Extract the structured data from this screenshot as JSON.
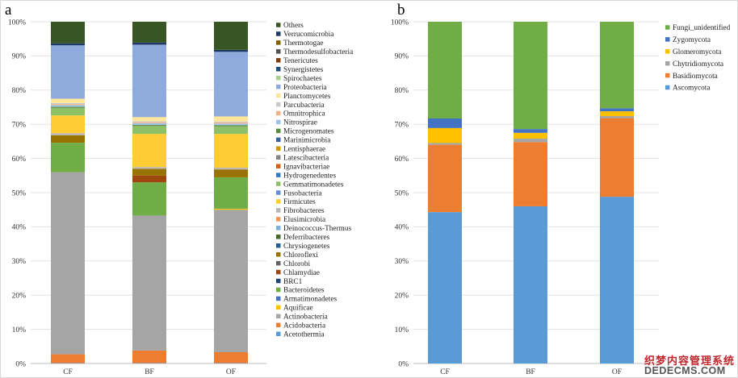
{
  "chart_data": [
    {
      "panel_label": "a",
      "type": "stacked-bar",
      "categories": [
        "CF",
        "BF",
        "OF"
      ],
      "ylim": [
        0,
        100
      ],
      "yticks": [
        "0%",
        "10%",
        "20%",
        "30%",
        "40%",
        "50%",
        "60%",
        "70%",
        "80%",
        "90%",
        "100%"
      ],
      "grid": true,
      "legend_position": "right",
      "series": [
        {
          "name": "Acetothermia",
          "color": "#5b9bd5",
          "values": [
            0.1,
            0.1,
            0.1
          ]
        },
        {
          "name": "Acidobacteria",
          "color": "#ed7d31",
          "values": [
            2.6,
            3.7,
            3.2
          ]
        },
        {
          "name": "Actinobacteria",
          "color": "#a5a5a5",
          "values": [
            53.3,
            39.5,
            41.7
          ]
        },
        {
          "name": "Aquificae",
          "color": "#ffc000",
          "values": [
            0,
            0,
            0.3
          ]
        },
        {
          "name": "Armatimonadetes",
          "color": "#4472c4",
          "values": [
            0,
            0,
            0
          ]
        },
        {
          "name": "Bacteroidetes",
          "color": "#70ad47",
          "values": [
            8.6,
            9.7,
            9.2
          ]
        },
        {
          "name": "BRC1",
          "color": "#264478",
          "values": [
            0,
            0,
            0
          ]
        },
        {
          "name": "Chlamydiae",
          "color": "#9e480e",
          "values": [
            0,
            2.0,
            0
          ]
        },
        {
          "name": "Chlorobi",
          "color": "#636363",
          "values": [
            0,
            0,
            0
          ]
        },
        {
          "name": "Chloroflexi",
          "color": "#997300",
          "values": [
            2.2,
            2.0,
            2.3
          ]
        },
        {
          "name": "Chrysiogenetes",
          "color": "#255e91",
          "values": [
            0,
            0,
            0
          ]
        },
        {
          "name": "Deferribacteres",
          "color": "#43682b",
          "values": [
            0,
            0,
            0
          ]
        },
        {
          "name": "Deinococcus-Thermus",
          "color": "#7cafdd",
          "values": [
            0,
            0,
            0
          ]
        },
        {
          "name": "Elusimicrobia",
          "color": "#f1975a",
          "values": [
            0,
            0,
            0
          ]
        },
        {
          "name": "Fibrobacteres",
          "color": "#b7b7b7",
          "values": [
            0.6,
            0.5,
            0.5
          ]
        },
        {
          "name": "Firmicutes",
          "color": "#ffcd33",
          "values": [
            5.2,
            9.7,
            9.9
          ]
        },
        {
          "name": "Fusobacteria",
          "color": "#698ed0",
          "values": [
            0,
            0,
            0
          ]
        },
        {
          "name": "Gemmatimonadetes",
          "color": "#8cc168",
          "values": [
            2.2,
            2.3,
            2.2
          ]
        },
        {
          "name": "Hydrogenedentes",
          "color": "#327dc2",
          "values": [
            0,
            0,
            0
          ]
        },
        {
          "name": "Ignavibacteriae",
          "color": "#d26012",
          "values": [
            0,
            0,
            0
          ]
        },
        {
          "name": "Latescibacteria",
          "color": "#848484",
          "values": [
            0,
            0,
            0
          ]
        },
        {
          "name": "Lentisphaerae",
          "color": "#cc9a00",
          "values": [
            0,
            0,
            0
          ]
        },
        {
          "name": "Marinimicrobia",
          "color": "#3a5fa0",
          "values": [
            0,
            0,
            0
          ]
        },
        {
          "name": "Microgenomates",
          "color": "#5a8a3c",
          "values": [
            0.3,
            0.3,
            0.3
          ]
        },
        {
          "name": "Nitrospirae",
          "color": "#9dc3e6",
          "values": [
            0.5,
            0.5,
            0.5
          ]
        },
        {
          "name": "Omnitrophica",
          "color": "#f4b183",
          "values": [
            0.3,
            0.3,
            0.3
          ]
        },
        {
          "name": "Parcubacteria",
          "color": "#c9c9c9",
          "values": [
            0.3,
            0.3,
            0.3
          ]
        },
        {
          "name": "Planctomycetes",
          "color": "#ffe699",
          "values": [
            1.3,
            1.2,
            1.5
          ]
        },
        {
          "name": "Proteobacteria",
          "color": "#8faadc",
          "values": [
            15.6,
            21.2,
            18.9
          ]
        },
        {
          "name": "Spirochaetes",
          "color": "#a9d18e",
          "values": [
            0,
            0,
            0
          ]
        },
        {
          "name": "Synergistetes",
          "color": "#1f4e79",
          "values": [
            0,
            0,
            0
          ]
        },
        {
          "name": "Tenericutes",
          "color": "#843c0c",
          "values": [
            0,
            0,
            0
          ]
        },
        {
          "name": "Thermodesulfobacteria",
          "color": "#525252",
          "values": [
            0,
            0,
            0
          ]
        },
        {
          "name": "Thermotogae",
          "color": "#7f6000",
          "values": [
            0,
            0,
            0
          ]
        },
        {
          "name": "Verrucomicrobia",
          "color": "#203864",
          "values": [
            0.6,
            0.6,
            0.6
          ]
        },
        {
          "name": "Others",
          "color": "#375623",
          "values": [
            6.3,
            6.1,
            8.2
          ]
        }
      ]
    },
    {
      "panel_label": "b",
      "type": "stacked-bar",
      "categories": [
        "CF",
        "BF",
        "OF"
      ],
      "ylim": [
        0,
        100
      ],
      "yticks": [
        "0%",
        "10%",
        "20%",
        "30%",
        "40%",
        "50%",
        "60%",
        "70%",
        "80%",
        "90%",
        "100%"
      ],
      "grid": true,
      "legend_position": "top-right",
      "series": [
        {
          "name": "Ascomycota",
          "color": "#5b9bd5",
          "values": [
            44.3,
            46.0,
            48.8
          ]
        },
        {
          "name": "Basidiomycota",
          "color": "#ed7d31",
          "values": [
            19.7,
            18.8,
            23.0
          ]
        },
        {
          "name": "Chytridiomycota",
          "color": "#a5a5a5",
          "values": [
            0.5,
            1.0,
            0.6
          ]
        },
        {
          "name": "Glomeromycota",
          "color": "#ffc000",
          "values": [
            4.4,
            1.7,
            1.4
          ]
        },
        {
          "name": "Zygomycota",
          "color": "#4472c4",
          "values": [
            2.8,
            1.1,
            0.9
          ]
        },
        {
          "name": "Fungi_unidentified",
          "color": "#70ad47",
          "values": [
            28.3,
            31.4,
            25.3
          ]
        }
      ]
    }
  ],
  "watermark": {
    "line1": "织梦内容管理系统",
    "line2": "DEDECMS.COM"
  }
}
